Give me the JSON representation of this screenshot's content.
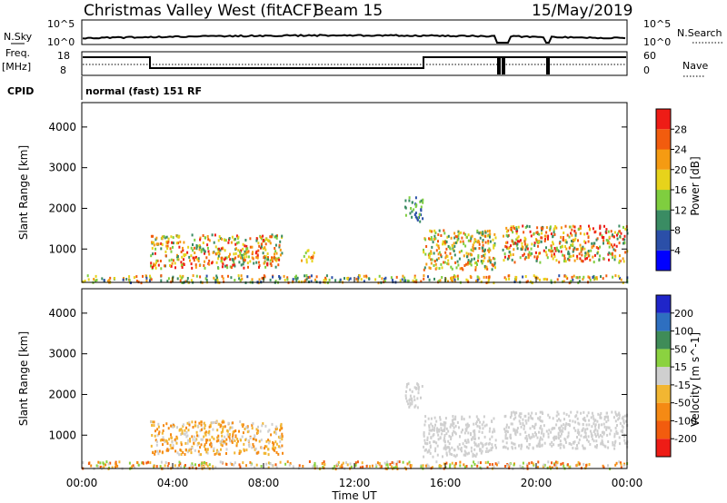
{
  "header": {
    "station": "Christmas Valley West (fitACF)",
    "beam": "Beam 15",
    "date": "15/May/2019"
  },
  "params": {
    "nsky_label": "N.Sky",
    "nsky_ticks": [
      "10^5",
      "10^0"
    ],
    "nsearch_label": "N.Search",
    "nsearch_ticks": [
      "10^5",
      "10^0"
    ],
    "freq_label_1": "Freq.",
    "freq_label_2": "[MHz]",
    "freq_ticks": [
      "18",
      "8"
    ],
    "nave_label": "Nave",
    "nave_ticks": [
      "60",
      "0"
    ],
    "cpid_label": "CPID",
    "cpid_text": "normal (fast) 151 RF"
  },
  "chart_data": [
    {
      "type": "heatmap",
      "name": "power",
      "ylabel": "Slant Range [km]",
      "ylim": [
        180,
        4600
      ],
      "yticks": [
        1000,
        2000,
        3000,
        4000
      ],
      "xlim": [
        0,
        24
      ],
      "colorbar_label": "Power [dB]",
      "colorbar_ticks": [
        "4",
        "8",
        "12",
        "16",
        "20",
        "24",
        "28"
      ],
      "colors": [
        "#0000ff",
        "#2b4fa8",
        "#3a8c63",
        "#7fce3f",
        "#e7d31b",
        "#f59b12",
        "#f25c0e",
        "#ee1c16"
      ],
      "scatter_regions": [
        {
          "t": [
            3.0,
            8.8
          ],
          "r": [
            550,
            1380
          ],
          "levels": [
            2,
            7
          ]
        },
        {
          "t": [
            9.6,
            10.2
          ],
          "r": [
            700,
            1000
          ],
          "levels": [
            3,
            6
          ]
        },
        {
          "t": [
            14.2,
            15.0
          ],
          "r": [
            1700,
            2300
          ],
          "levels": [
            1,
            3
          ]
        },
        {
          "t": [
            15.0,
            18.2
          ],
          "r": [
            500,
            1500
          ],
          "levels": [
            2,
            6
          ]
        },
        {
          "t": [
            18.5,
            24.0
          ],
          "r": [
            700,
            1600
          ],
          "levels": [
            2,
            7
          ]
        },
        {
          "t": [
            0.0,
            24.0
          ],
          "r": [
            200,
            380
          ],
          "levels": [
            1,
            6
          ]
        }
      ]
    },
    {
      "type": "heatmap",
      "name": "velocity",
      "ylabel": "Slant Range [km]",
      "ylim": [
        180,
        4600
      ],
      "yticks": [
        1000,
        2000,
        3000,
        4000
      ],
      "xlim": [
        0,
        24
      ],
      "xlabel": "Time UT",
      "xticks": [
        "00:00",
        "04:00",
        "08:00",
        "12:00",
        "16:00",
        "20:00",
        "00:00"
      ],
      "colorbar_label": "Velocity [m s^-1]",
      "colorbar_ticks": [
        "200",
        "100",
        "50",
        "15",
        "-15",
        "-50",
        "-100",
        "-200"
      ],
      "colors": [
        "#1f25c9",
        "#2e6fc0",
        "#3f8c58",
        "#8bd240",
        "#cfcfcf",
        "#f2b632",
        "#f58a14",
        "#f25c0e",
        "#ee1c16"
      ],
      "scatter_regions": [
        {
          "t": [
            3.0,
            8.8
          ],
          "r": [
            550,
            1380
          ],
          "levels": [
            4,
            6
          ]
        },
        {
          "t": [
            14.2,
            15.0
          ],
          "r": [
            1700,
            2300
          ],
          "levels": [
            4,
            4
          ]
        },
        {
          "t": [
            15.0,
            18.2
          ],
          "r": [
            500,
            1500
          ],
          "levels": [
            4,
            4
          ]
        },
        {
          "t": [
            18.5,
            24.0
          ],
          "r": [
            700,
            1600
          ],
          "levels": [
            4,
            4
          ]
        },
        {
          "t": [
            0.0,
            24.0
          ],
          "r": [
            200,
            380
          ],
          "levels": [
            3,
            7
          ]
        }
      ]
    }
  ]
}
